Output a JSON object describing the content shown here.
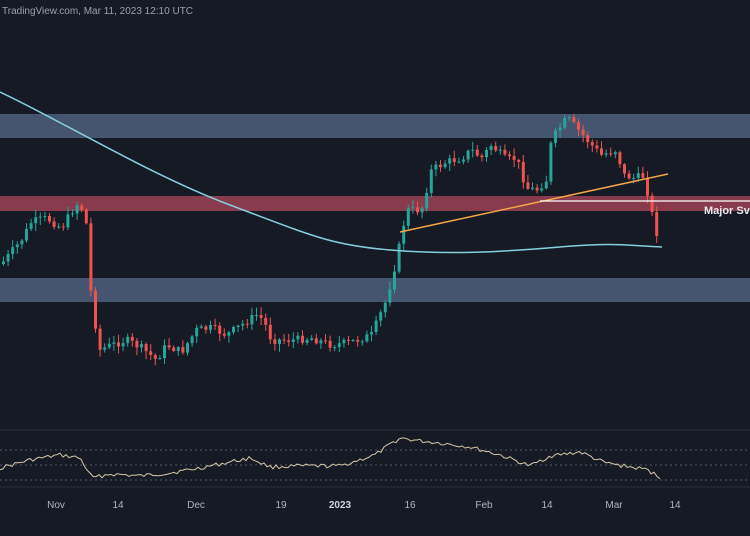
{
  "watermark": "TradingView.com, Mar 11, 2023 12:10 UTC",
  "colors": {
    "background": "#161a25",
    "up_candle": "#26a69a",
    "down_candle": "#ef5350",
    "moving_average": "#86cfe0",
    "support_zone": "#5b6f8e",
    "resistance_zone": "#b84a5c",
    "trendline": "#f5a54a",
    "rsi_line": "#d8c9a8",
    "level_line": "#ffffff"
  },
  "chart_data": {
    "type": "candlestick",
    "x_tick_labels": [
      "Nov",
      "14",
      "Dec",
      "19",
      "2023",
      "16",
      "Feb",
      "14",
      "Mar",
      "14"
    ],
    "annotation_label": "Major Sv",
    "zones": [
      {
        "kind": "support",
        "color": "#5b6f8e"
      },
      {
        "kind": "resistance",
        "color": "#b84a5c"
      },
      {
        "kind": "support",
        "color": "#5b6f8e"
      }
    ],
    "overlays": {
      "moving_average": true,
      "ascending_trendline": true,
      "horizontal_level": true
    },
    "indicator_panel": {
      "type": "rsi_line",
      "levels": "dotted upper/middle/lower"
    },
    "price_series_shape": [
      {
        "segment": "late Oct",
        "trend": "rising to local high"
      },
      {
        "segment": "early Nov",
        "trend": "sharp crash"
      },
      {
        "segment": "Nov-Dec",
        "trend": "sideways range at lows"
      },
      {
        "segment": "early Jan",
        "trend": "strong rally"
      },
      {
        "segment": "Jan-Feb",
        "trend": "range near top"
      },
      {
        "segment": "late Feb",
        "trend": "new high then decline"
      },
      {
        "segment": "early Mar",
        "trend": "breakdown below trendline"
      }
    ]
  }
}
